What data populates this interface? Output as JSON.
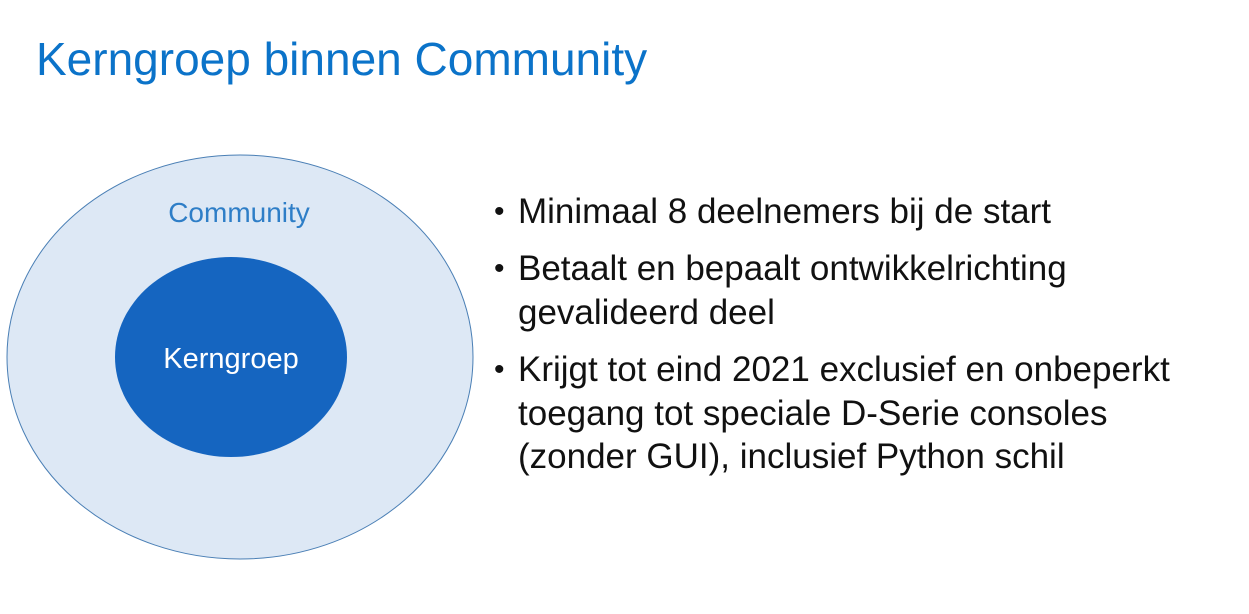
{
  "slide": {
    "title": "Kerngroep binnen Community"
  },
  "diagram": {
    "outer_label": "Community",
    "inner_label": "Kerngroep",
    "colors": {
      "outer_fill": "#dde8f5",
      "outer_stroke": "#4a7fb5",
      "inner_fill": "#1565c0",
      "outer_text": "#2e7ec7",
      "inner_text": "#ffffff"
    }
  },
  "bullets": [
    {
      "text": "Minimaal 8 deelnemers bij de start"
    },
    {
      "text": "Betaalt en bepaalt ontwikkelrichting gevalideerd deel"
    },
    {
      "text": "Krijgt tot eind 2021 exclusief en onbeperkt toegang tot speciale D-Serie consoles (zonder GUI), inclusief Python schil"
    }
  ],
  "bullet_symbol": "•"
}
